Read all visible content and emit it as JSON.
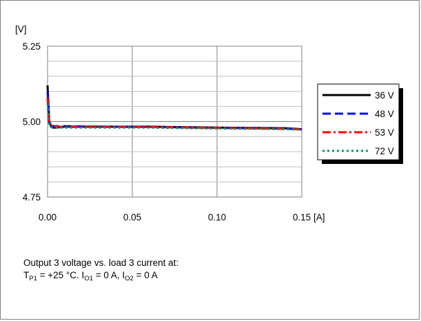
{
  "chart_data": {
    "type": "line",
    "ylabel": "[V]",
    "xlabel": "[A]",
    "xlim": [
      0,
      0.15
    ],
    "ylim": [
      4.75,
      5.25
    ],
    "x_ticks": [
      "0.00",
      "0.05",
      "0.10",
      "0.15"
    ],
    "y_ticks": [
      "5.25",
      "5.00",
      "4.75"
    ],
    "y_tick_values": [
      5.25,
      5.0,
      4.75
    ],
    "x_tick_values": [
      0,
      0.05,
      0.1,
      0.15
    ],
    "grid": "major vertical and horizontal",
    "legend_position": "right",
    "series": [
      {
        "name": "36 V",
        "color": "#000000",
        "style": "solid",
        "x": [
          0,
          0.0005,
          0.001,
          0.002,
          0.003,
          0.005,
          0.01,
          0.03,
          0.06,
          0.1,
          0.14,
          0.15
        ],
        "y": [
          5.12,
          5.06,
          5.0,
          4.985,
          4.98,
          4.98,
          4.983,
          4.983,
          4.983,
          4.98,
          4.978,
          4.975
        ]
      },
      {
        "name": "48 V",
        "color": "#0000ff",
        "style": "dash",
        "x": [
          0,
          0.0005,
          0.001,
          0.002,
          0.003,
          0.005,
          0.01,
          0.03,
          0.06,
          0.1,
          0.14,
          0.15
        ],
        "y": [
          5.1,
          5.05,
          4.99,
          4.98,
          4.985,
          4.985,
          4.985,
          4.983,
          4.982,
          4.979,
          4.977,
          4.974
        ]
      },
      {
        "name": "53 V",
        "color": "#ff0000",
        "style": "dashdot",
        "x": [
          0,
          0.0005,
          0.001,
          0.002,
          0.003,
          0.005,
          0.01,
          0.03,
          0.06,
          0.1,
          0.14,
          0.15
        ],
        "y": [
          5.08,
          5.03,
          5.0,
          4.99,
          4.985,
          4.984,
          4.982,
          4.982,
          4.982,
          4.979,
          4.976,
          4.974
        ]
      },
      {
        "name": "72 V",
        "color": "#009966",
        "style": "dot",
        "x": [
          0,
          0.0005,
          0.001,
          0.002,
          0.003,
          0.005,
          0.01,
          0.03,
          0.06,
          0.1,
          0.14,
          0.15
        ],
        "y": [
          5.06,
          5.02,
          4.99,
          4.982,
          4.98,
          4.98,
          4.98,
          4.98,
          4.98,
          4.977,
          4.975,
          4.973
        ]
      }
    ]
  },
  "caption": {
    "line1": "Output 3 voltage vs. load 3 current at:",
    "t_main": "T",
    "t_sub": "P1",
    "t_rest": " = +25 °C. I",
    "io1_sub": "O1",
    "io1_rest": " = 0 A, I",
    "io2_sub": "O2",
    "io2_rest": " = 0 A"
  }
}
